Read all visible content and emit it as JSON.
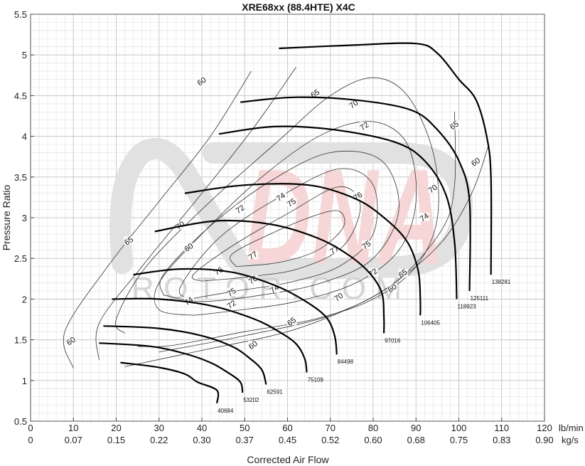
{
  "chart_data": {
    "type": "line",
    "title": "XRE68xx (88.4HTE)   X4C",
    "xlabel": "Corrected Air Flow",
    "ylabel": "Pressure Ratio",
    "xlim": [
      0,
      120
    ],
    "ylim": [
      0.5,
      5.5
    ],
    "x_unit_primary": "lb/min",
    "x_unit_secondary": "kg/s",
    "x_ticks_primary": [
      "0",
      "10",
      "20",
      "30",
      "40",
      "50",
      "60",
      "70",
      "80",
      "90",
      "100",
      "110",
      "120"
    ],
    "x_ticks_secondary": [
      "0",
      "0.07",
      "0.15",
      "0.22",
      "0.30",
      "0.37",
      "0.45",
      "0.52",
      "0.60",
      "0.68",
      "0.75",
      "0.83",
      "0.90"
    ],
    "y_ticks": [
      "0.5",
      "1",
      "1.5",
      "2",
      "2.5",
      "3",
      "3.5",
      "4",
      "4.5",
      "5",
      "5.5"
    ],
    "grid": true,
    "speed_lines": [
      {
        "rpm": "40684",
        "points": [
          [
            21,
            1.22
          ],
          [
            30,
            1.16
          ],
          [
            36,
            1.08
          ],
          [
            39,
            0.98
          ],
          [
            43.5,
            0.88
          ],
          [
            43.5,
            0.72
          ]
        ]
      },
      {
        "rpm": "53202",
        "points": [
          [
            16,
            1.46
          ],
          [
            28,
            1.42
          ],
          [
            36,
            1.33
          ],
          [
            42,
            1.22
          ],
          [
            46,
            1.1
          ],
          [
            49,
            0.98
          ],
          [
            49.5,
            0.85
          ]
        ]
      },
      {
        "rpm": "62591",
        "points": [
          [
            17,
            1.67
          ],
          [
            30,
            1.64
          ],
          [
            40,
            1.55
          ],
          [
            47,
            1.42
          ],
          [
            51,
            1.28
          ],
          [
            54,
            1.13
          ],
          [
            55,
            0.95
          ]
        ]
      },
      {
        "rpm": "75109",
        "points": [
          [
            19,
            2.0
          ],
          [
            30,
            2.0
          ],
          [
            42,
            1.92
          ],
          [
            52,
            1.76
          ],
          [
            58,
            1.6
          ],
          [
            62,
            1.45
          ],
          [
            64,
            1.27
          ],
          [
            64.5,
            1.1
          ]
        ]
      },
      {
        "rpm": "84498",
        "points": [
          [
            24,
            2.3
          ],
          [
            35,
            2.37
          ],
          [
            47,
            2.33
          ],
          [
            57,
            2.17
          ],
          [
            64,
            1.98
          ],
          [
            69,
            1.78
          ],
          [
            71,
            1.55
          ],
          [
            71.5,
            1.32
          ]
        ]
      },
      {
        "rpm": "97016",
        "points": [
          [
            29,
            2.83
          ],
          [
            43,
            2.96
          ],
          [
            56,
            2.92
          ],
          [
            67,
            2.75
          ],
          [
            74,
            2.55
          ],
          [
            79,
            2.33
          ],
          [
            82,
            2.08
          ],
          [
            82.5,
            1.78
          ],
          [
            82.5,
            1.58
          ]
        ]
      },
      {
        "rpm": "106405",
        "points": [
          [
            36,
            3.3
          ],
          [
            50,
            3.4
          ],
          [
            65,
            3.4
          ],
          [
            76,
            3.23
          ],
          [
            83,
            2.98
          ],
          [
            88,
            2.7
          ],
          [
            90.5,
            2.35
          ],
          [
            91,
            2.0
          ],
          [
            91,
            1.8
          ]
        ]
      },
      {
        "rpm": "118923",
        "points": [
          [
            44,
            4.03
          ],
          [
            57,
            4.12
          ],
          [
            71,
            4.08
          ],
          [
            85,
            3.93
          ],
          [
            92,
            3.7
          ],
          [
            97,
            3.28
          ],
          [
            99,
            2.7
          ],
          [
            99.5,
            2.0
          ]
        ]
      },
      {
        "rpm": "125111",
        "points": [
          [
            49,
            4.42
          ],
          [
            62,
            4.48
          ],
          [
            77,
            4.44
          ],
          [
            89,
            4.32
          ],
          [
            95,
            4.08
          ],
          [
            100,
            3.7
          ],
          [
            102.5,
            3.2
          ],
          [
            102.5,
            2.1
          ]
        ]
      },
      {
        "rpm": "138281",
        "points": [
          [
            58,
            5.08
          ],
          [
            75,
            5.12
          ],
          [
            90,
            5.14
          ],
          [
            95,
            5.02
          ],
          [
            100,
            4.7
          ],
          [
            104,
            4.45
          ],
          [
            106.5,
            4.0
          ],
          [
            107.5,
            3.5
          ],
          [
            107.5,
            2.3
          ]
        ]
      }
    ],
    "efficiency_islands": [
      {
        "eff": "60",
        "label_pos": [
          9.5,
          1.48
        ],
        "label_pos2": [
          52,
          1.43
        ],
        "label_pos3": [
          84.5,
          2.13
        ],
        "label_pos4": [
          40,
          4.67
        ],
        "label_pos5": [
          104,
          3.68
        ],
        "label_pos6": [
          37,
          2.63
        ]
      },
      {
        "eff": "65",
        "label_pos": [
          23,
          2.71
        ],
        "label_pos2": [
          61,
          1.72
        ],
        "label_pos3": [
          87,
          2.31
        ],
        "label_pos4": [
          66.5,
          4.52
        ],
        "label_pos5": [
          99,
          4.13
        ]
      },
      {
        "eff": "70",
        "label_pos": [
          72,
          2.02
        ],
        "label_pos2": [
          35,
          2.9
        ],
        "label_pos3": [
          75.5,
          4.39
        ],
        "label_pos4": [
          94,
          3.35
        ]
      },
      {
        "eff": "72",
        "label_pos": [
          49,
          3.1
        ],
        "label_pos2": [
          78,
          4.12
        ],
        "label_pos3": [
          80,
          2.32
        ],
        "label_pos4": [
          47,
          1.93
        ]
      },
      {
        "eff": "74",
        "label_pos": [
          58.5,
          3.25
        ],
        "label_pos2": [
          92,
          3.0
        ],
        "label_pos3": [
          57,
          2.12
        ],
        "label_pos4": [
          37,
          1.97
        ]
      },
      {
        "eff": "75",
        "label_pos": [
          61,
          3.18
        ],
        "label_pos2": [
          78.5,
          2.66
        ],
        "label_pos3": [
          47,
          2.08
        ]
      },
      {
        "eff": "76",
        "label_pos": [
          76.5,
          3.26
        ],
        "label_pos2": [
          52,
          2.23
        ],
        "label_pos3": [
          44,
          2.34
        ]
      },
      {
        "eff": "77",
        "label_pos": [
          52,
          2.53
        ],
        "label_pos2": [
          71,
          2.6
        ]
      }
    ]
  },
  "watermark": {
    "brand": "DNA",
    "text": "R O T O R . C O M"
  }
}
